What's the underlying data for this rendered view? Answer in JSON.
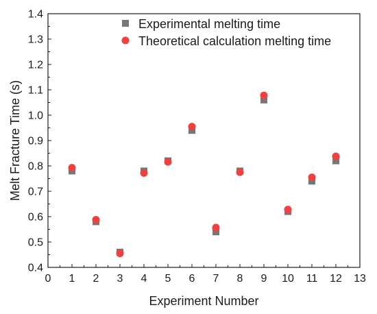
{
  "chart_data": {
    "type": "scatter",
    "xlabel": "Experiment Number",
    "ylabel": "Melt Fracture Time (s)",
    "xlim": [
      0,
      13
    ],
    "ylim": [
      0.4,
      1.4
    ],
    "x_ticks": [
      0,
      1,
      2,
      3,
      4,
      5,
      6,
      7,
      8,
      9,
      10,
      11,
      12,
      13
    ],
    "y_ticks": [
      0.4,
      0.5,
      0.6,
      0.7,
      0.8,
      0.9,
      1.0,
      1.1,
      1.2,
      1.3,
      1.4
    ],
    "y_tick_labels": [
      "0.4",
      "0.5",
      "0.6",
      "0.7",
      "0.8",
      "0.9",
      "1.0",
      "1.1",
      "1.2",
      "1.3",
      "1.4"
    ],
    "legend_position": "top-right",
    "grid": false,
    "series": [
      {
        "name": "Experimental melting time",
        "marker": "square",
        "color": "#777777",
        "x": [
          1,
          2,
          3,
          4,
          5,
          6,
          7,
          8,
          9,
          10,
          11,
          12
        ],
        "y": [
          0.78,
          0.58,
          0.46,
          0.78,
          0.82,
          0.94,
          0.54,
          0.78,
          1.06,
          0.62,
          0.74,
          0.82
        ]
      },
      {
        "name": "Theoretical calculation melting time",
        "marker": "circle",
        "color": "#f04040",
        "x": [
          1,
          2,
          3,
          4,
          5,
          6,
          7,
          8,
          9,
          10,
          11,
          12
        ],
        "y": [
          0.793,
          0.588,
          0.455,
          0.772,
          0.816,
          0.955,
          0.557,
          0.775,
          1.078,
          0.628,
          0.755,
          0.838
        ]
      }
    ]
  }
}
